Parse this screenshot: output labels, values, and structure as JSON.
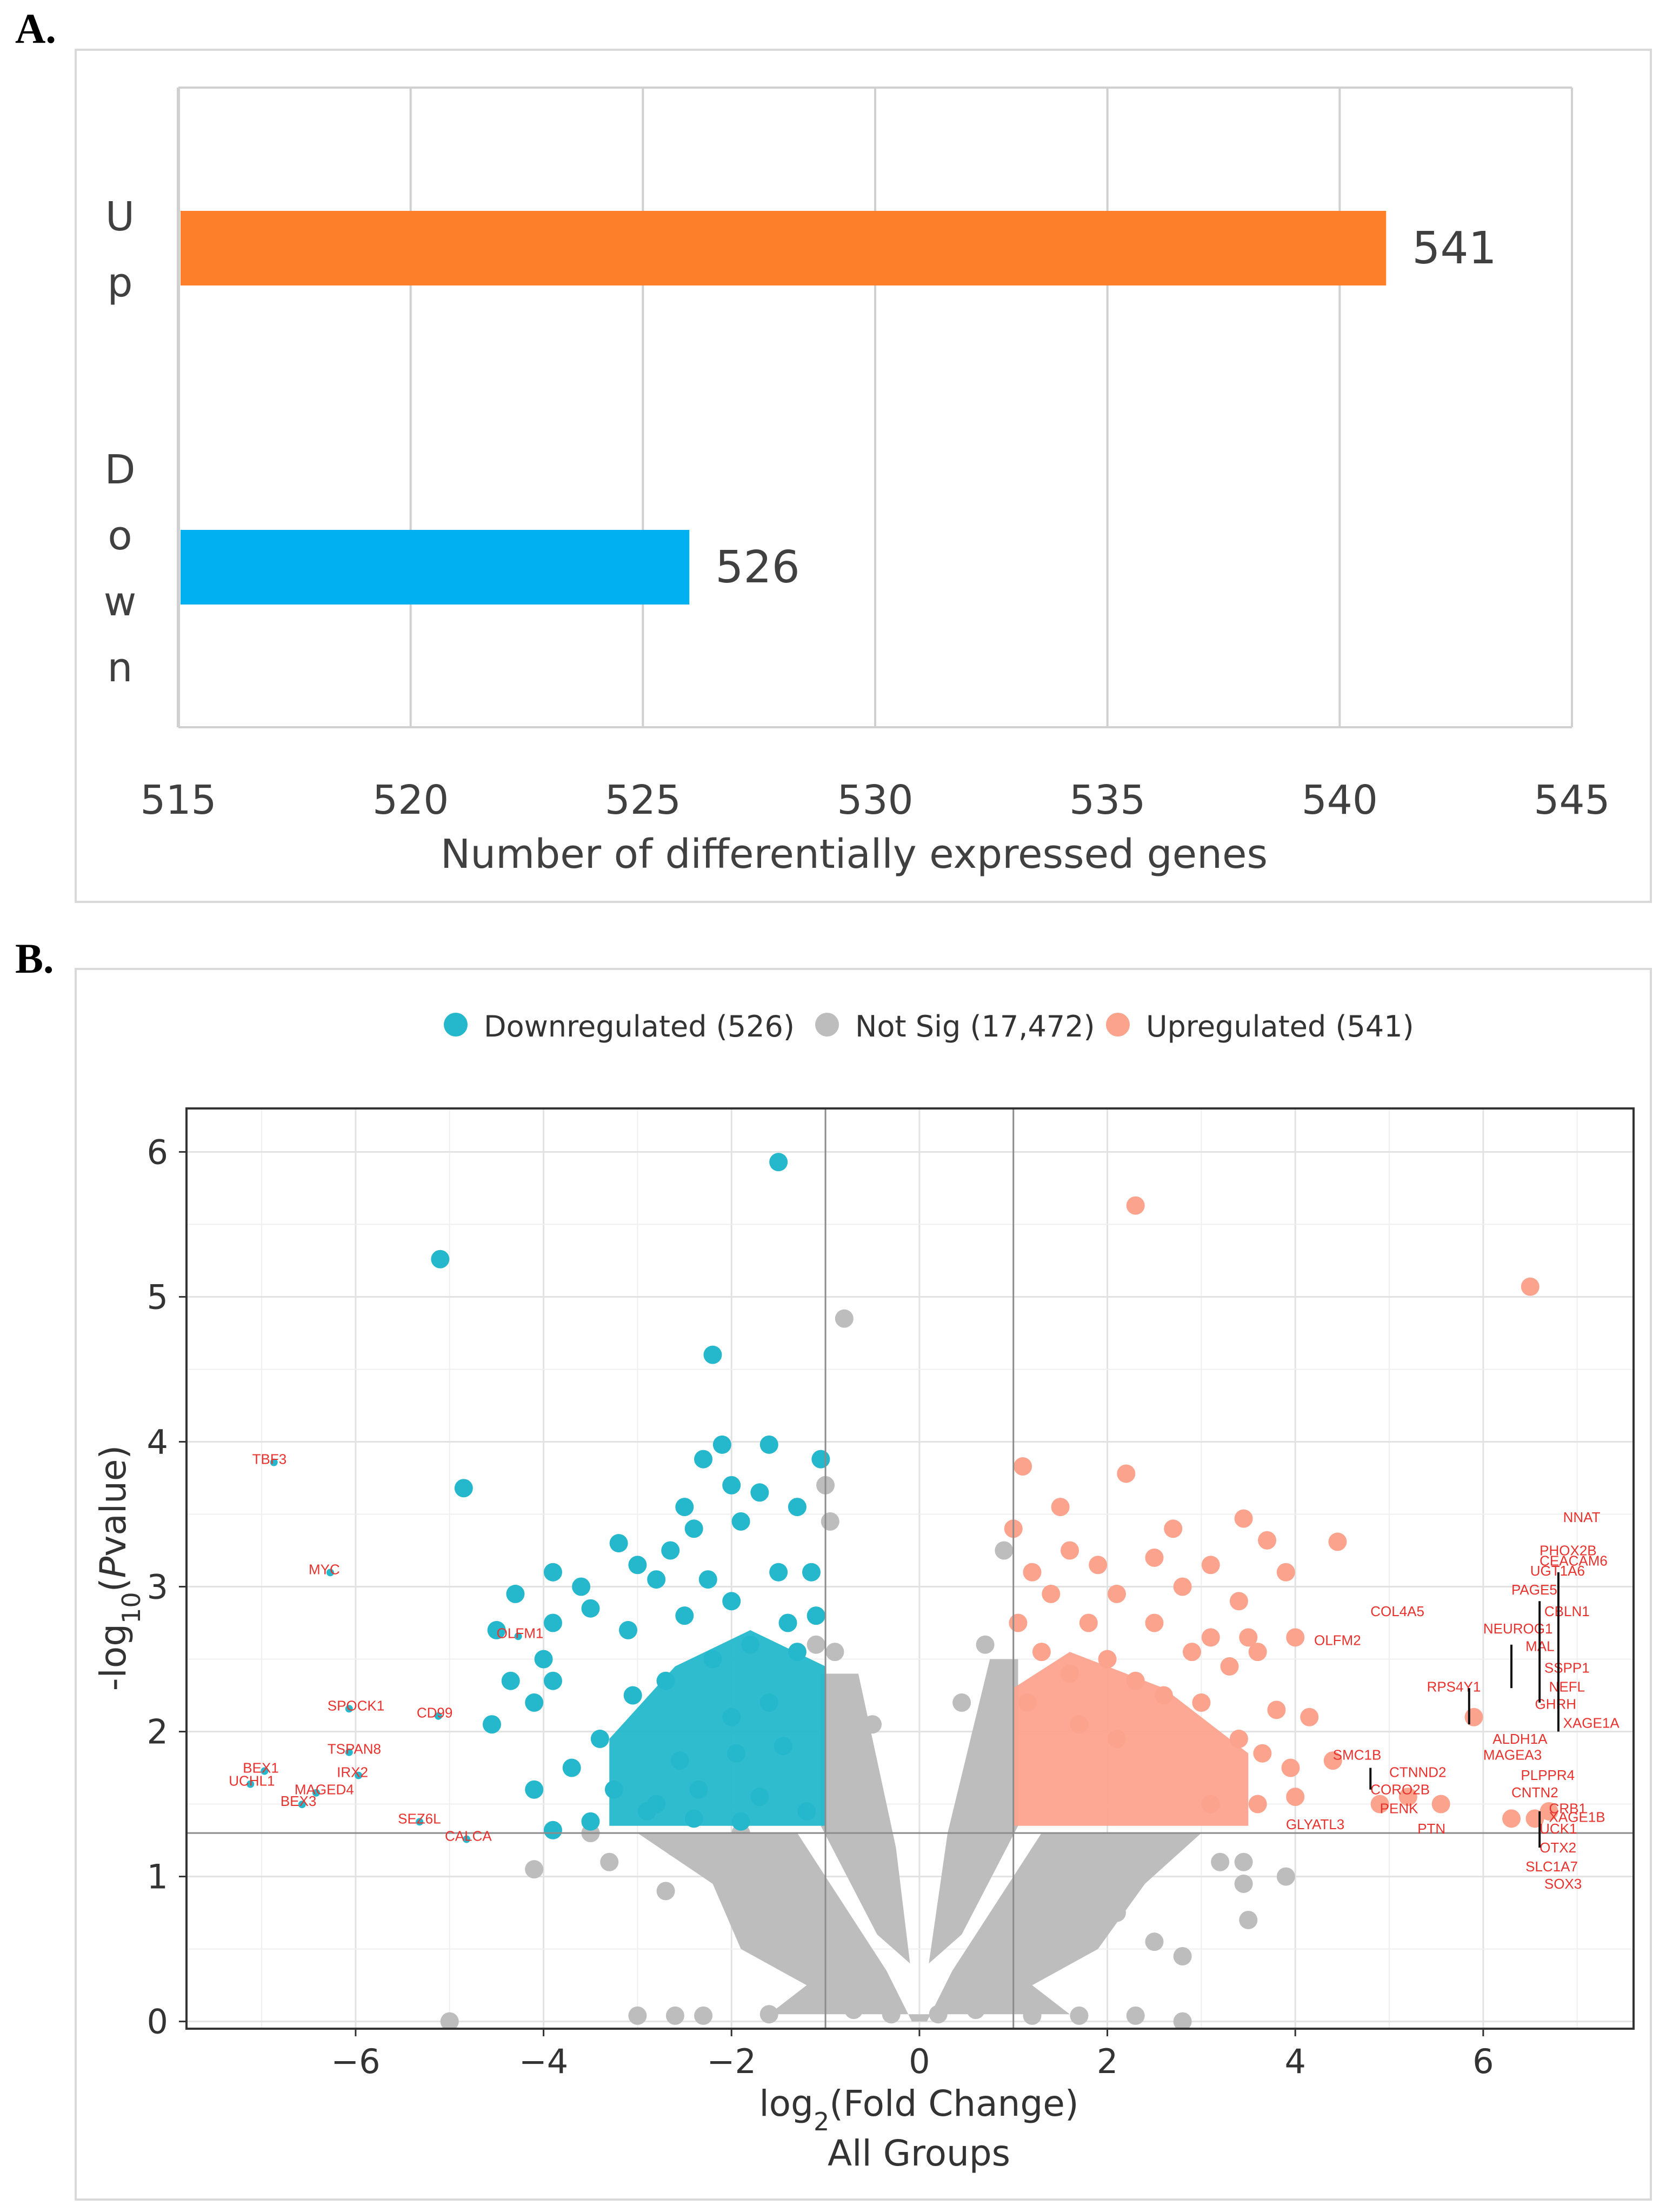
{
  "panels": {
    "a": "A.",
    "b": "B."
  },
  "chart_data": [
    {
      "type": "bar",
      "orientation": "horizontal",
      "categories": [
        "Up",
        "Down"
      ],
      "category_letters": [
        [
          "U",
          "p"
        ],
        [
          "D",
          "o",
          "w",
          "n"
        ]
      ],
      "values": [
        541,
        526
      ],
      "value_labels": [
        "541",
        "526"
      ],
      "colors": [
        "#fe7f2a",
        "#00b0f0"
      ],
      "xlim": [
        515,
        545
      ],
      "xticks": [
        515,
        520,
        525,
        530,
        535,
        540,
        545
      ],
      "xlabel": "Number of differentially expressed genes",
      "grid": true
    },
    {
      "type": "scatter",
      "subtype": "volcano",
      "legend": [
        {
          "label": "Downregulated (526)",
          "color": "#25b8cc"
        },
        {
          "label": "Not Sig (17,472)",
          "color": "#bdbdbd"
        },
        {
          "label": "Upregulated (541)",
          "color": "#fca38e"
        }
      ],
      "xlabel": "log2(Fold Change)",
      "xlabel_main": "log",
      "xlabel_sub": "2",
      "xlabel_rest": "(Fold Change)",
      "subtitle": "All Groups",
      "ylabel_pre": "-log",
      "ylabel_sub": "10",
      "ylabel_open": "(",
      "ylabel_italic": "P",
      "ylabel_rest": "value)",
      "xlim": [
        -7.8,
        7.6
      ],
      "ylim": [
        -0.05,
        6.3
      ],
      "xticks": [
        -6,
        -4,
        -2,
        0,
        2,
        4,
        6
      ],
      "xtick_labels": [
        "−6",
        "−4",
        "−2",
        "0",
        "2",
        "4",
        "6"
      ],
      "yticks": [
        0,
        1,
        2,
        3,
        4,
        5,
        6
      ],
      "ytick_labels": [
        "0",
        "1",
        "2",
        "3",
        "4",
        "5",
        "6"
      ],
      "thresholds": {
        "fold_change": [
          -1,
          1
        ],
        "pvalue": 1.3
      },
      "down_points": [
        [
          -1.5,
          5.93
        ],
        [
          -5.1,
          5.26
        ],
        [
          -2.2,
          4.6
        ],
        [
          -2.1,
          3.98
        ],
        [
          -1.6,
          3.98
        ],
        [
          -1.05,
          3.88
        ],
        [
          -2.3,
          3.88
        ],
        [
          -4.85,
          3.68
        ],
        [
          -2.5,
          3.55
        ],
        [
          -1.7,
          3.65
        ],
        [
          -1.3,
          3.55
        ],
        [
          -2.0,
          3.7
        ],
        [
          -2.4,
          3.4
        ],
        [
          -3.2,
          3.3
        ],
        [
          -2.65,
          3.25
        ],
        [
          -1.9,
          3.45
        ],
        [
          -3.9,
          3.1
        ],
        [
          -3.0,
          3.15
        ],
        [
          -2.8,
          3.05
        ],
        [
          -2.25,
          3.05
        ],
        [
          -1.5,
          3.1
        ],
        [
          -1.15,
          3.1
        ],
        [
          -3.6,
          3.0
        ],
        [
          -4.3,
          2.95
        ],
        [
          -3.5,
          2.85
        ],
        [
          -2.0,
          2.9
        ],
        [
          -1.1,
          2.8
        ],
        [
          -1.4,
          2.75
        ],
        [
          -3.9,
          2.75
        ],
        [
          -4.5,
          2.7
        ],
        [
          -3.1,
          2.7
        ],
        [
          -2.5,
          2.8
        ],
        [
          -4.0,
          2.5
        ],
        [
          -4.35,
          2.35
        ],
        [
          -3.9,
          2.35
        ],
        [
          -4.1,
          2.2
        ],
        [
          -4.55,
          2.05
        ],
        [
          -3.7,
          1.75
        ],
        [
          -4.1,
          1.6
        ],
        [
          -2.35,
          1.6
        ],
        [
          -3.9,
          1.32
        ],
        [
          -2.8,
          1.5
        ],
        [
          -1.95,
          1.85
        ],
        [
          -3.4,
          1.95
        ],
        [
          -3.05,
          2.25
        ],
        [
          -2.7,
          2.35
        ],
        [
          -2.2,
          2.5
        ],
        [
          -1.8,
          2.6
        ],
        [
          -1.3,
          2.55
        ],
        [
          -1.6,
          2.2
        ],
        [
          -2.0,
          2.1
        ],
        [
          -1.45,
          1.9
        ],
        [
          -2.55,
          1.8
        ],
        [
          -3.25,
          1.6
        ],
        [
          -1.7,
          1.55
        ],
        [
          -2.9,
          1.45
        ],
        [
          -1.2,
          1.45
        ],
        [
          -2.4,
          1.4
        ],
        [
          -1.9,
          1.38
        ],
        [
          -3.5,
          1.38
        ]
      ],
      "down_fill": {
        "x0": -3.3,
        "x1": -1.0,
        "y0": 1.35,
        "y1": 2.45
      },
      "up_points": [
        [
          2.3,
          5.63
        ],
        [
          6.5,
          5.07
        ],
        [
          1.1,
          3.83
        ],
        [
          2.2,
          3.78
        ],
        [
          1.5,
          3.55
        ],
        [
          3.45,
          3.47
        ],
        [
          1.0,
          3.4
        ],
        [
          2.7,
          3.4
        ],
        [
          3.7,
          3.32
        ],
        [
          4.45,
          3.31
        ],
        [
          1.6,
          3.25
        ],
        [
          1.9,
          3.15
        ],
        [
          2.5,
          3.2
        ],
        [
          3.1,
          3.15
        ],
        [
          3.9,
          3.1
        ],
        [
          1.2,
          3.1
        ],
        [
          2.8,
          3.0
        ],
        [
          1.4,
          2.95
        ],
        [
          2.1,
          2.95
        ],
        [
          3.4,
          2.9
        ],
        [
          1.05,
          2.75
        ],
        [
          1.8,
          2.75
        ],
        [
          2.5,
          2.75
        ],
        [
          3.1,
          2.65
        ],
        [
          3.5,
          2.65
        ],
        [
          4.0,
          2.65
        ],
        [
          1.3,
          2.55
        ],
        [
          2.0,
          2.5
        ],
        [
          2.9,
          2.55
        ],
        [
          3.3,
          2.45
        ],
        [
          3.6,
          2.55
        ],
        [
          1.6,
          2.4
        ],
        [
          2.3,
          2.35
        ],
        [
          2.6,
          2.25
        ],
        [
          3.0,
          2.2
        ],
        [
          3.8,
          2.15
        ],
        [
          4.15,
          2.1
        ],
        [
          1.15,
          2.2
        ],
        [
          1.7,
          2.05
        ],
        [
          2.1,
          1.95
        ],
        [
          3.4,
          1.95
        ],
        [
          3.65,
          1.85
        ],
        [
          3.95,
          1.75
        ],
        [
          4.4,
          1.8
        ],
        [
          4.0,
          1.55
        ],
        [
          3.6,
          1.5
        ],
        [
          3.1,
          1.5
        ],
        [
          4.9,
          1.5
        ],
        [
          5.2,
          1.55
        ],
        [
          5.55,
          1.5
        ],
        [
          5.9,
          2.1
        ],
        [
          6.3,
          1.4
        ],
        [
          6.55,
          1.4
        ],
        [
          6.7,
          1.45
        ]
      ],
      "up_fill": {
        "x0": 1.0,
        "x1": 3.5,
        "y0": 1.35,
        "y1": 2.3
      },
      "ns_points": [
        [
          -0.8,
          4.85
        ],
        [
          -1.1,
          2.6
        ],
        [
          -0.9,
          2.55
        ],
        [
          -1.0,
          3.7
        ],
        [
          -0.95,
          3.45
        ],
        [
          0.9,
          3.25
        ],
        [
          0.7,
          2.6
        ],
        [
          0.45,
          2.2
        ],
        [
          -0.5,
          2.05
        ],
        [
          0.8,
          1.95
        ],
        [
          -1.2,
          1.05
        ],
        [
          -1.9,
          1.3
        ],
        [
          -2.6,
          1.2
        ],
        [
          -3.5,
          1.3
        ],
        [
          -3.3,
          1.1
        ],
        [
          -4.1,
          1.05
        ],
        [
          -2.7,
          0.9
        ],
        [
          -1.0,
          0.3
        ],
        [
          0.95,
          0.3
        ],
        [
          2.8,
          0.45
        ],
        [
          3.5,
          0.7
        ],
        [
          3.45,
          0.95
        ],
        [
          3.9,
          1.0
        ],
        [
          3.45,
          1.1
        ],
        [
          3.2,
          1.1
        ],
        [
          2.5,
          0.55
        ],
        [
          1.5,
          0.9
        ],
        [
          1.8,
          1.05
        ],
        [
          2.3,
          1.0
        ],
        [
          2.1,
          0.75
        ],
        [
          -1.5,
          1.2
        ],
        [
          -2.2,
          1.05
        ],
        [
          -0.3,
          0.05
        ],
        [
          0.2,
          0.05
        ],
        [
          0.6,
          0.08
        ],
        [
          -0.7,
          0.08
        ],
        [
          -1.6,
          0.05
        ],
        [
          -2.3,
          0.04
        ],
        [
          -2.6,
          0.04
        ],
        [
          1.2,
          0.04
        ],
        [
          1.7,
          0.04
        ],
        [
          2.3,
          0.04
        ],
        [
          2.8,
          0.0
        ],
        [
          -5.0,
          0.0
        ],
        [
          -3.0,
          0.04
        ]
      ],
      "ns_funnel": {
        "left_outer": -3.0,
        "right_outer": 3.0,
        "y_top": 1.3
      },
      "down_gene_labels": [
        {
          "gene": "TBF3",
          "x": -7.1,
          "y": 3.88
        },
        {
          "gene": "MYC",
          "x": -6.5,
          "y": 3.12
        },
        {
          "gene": "OLFM1",
          "x": -4.5,
          "y": 2.68
        },
        {
          "gene": "SPOCK1",
          "x": -6.3,
          "y": 2.18
        },
        {
          "gene": "CD99",
          "x": -5.35,
          "y": 2.13
        },
        {
          "gene": "TSPAN8",
          "x": -6.3,
          "y": 1.88
        },
        {
          "gene": "BEX1",
          "x": -7.2,
          "y": 1.75
        },
        {
          "gene": "IRX2",
          "x": -6.2,
          "y": 1.72
        },
        {
          "gene": "UCHL1",
          "x": -7.35,
          "y": 1.66
        },
        {
          "gene": "MAGED4",
          "x": -6.65,
          "y": 1.6
        },
        {
          "gene": "BEX3",
          "x": -6.8,
          "y": 1.52
        },
        {
          "gene": "SEZ6L",
          "x": -5.55,
          "y": 1.4
        },
        {
          "gene": "CALCA",
          "x": -5.05,
          "y": 1.28
        }
      ],
      "up_gene_labels": [
        {
          "gene": "NNAT",
          "x": 6.85,
          "y": 3.48
        },
        {
          "gene": "PHOX2B",
          "x": 6.6,
          "y": 3.25
        },
        {
          "gene": "CEACAM6",
          "x": 6.6,
          "y": 3.18
        },
        {
          "gene": "UGT1A6",
          "x": 6.5,
          "y": 3.11
        },
        {
          "gene": "PAGE5",
          "x": 6.3,
          "y": 2.98
        },
        {
          "gene": "COL4A5",
          "x": 4.8,
          "y": 2.83
        },
        {
          "gene": "CBLN1",
          "x": 6.65,
          "y": 2.83
        },
        {
          "gene": "NEUROG1",
          "x": 6.0,
          "y": 2.71
        },
        {
          "gene": "OLFM2",
          "x": 4.2,
          "y": 2.63
        },
        {
          "gene": "MAL",
          "x": 6.45,
          "y": 2.59
        },
        {
          "gene": "SSPP1",
          "x": 6.65,
          "y": 2.44
        },
        {
          "gene": "RPS4Y1",
          "x": 5.4,
          "y": 2.31
        },
        {
          "gene": "NEFL",
          "x": 6.7,
          "y": 2.31
        },
        {
          "gene": "GHRH",
          "x": 6.55,
          "y": 2.19
        },
        {
          "gene": "XAGE1A",
          "x": 6.85,
          "y": 2.06
        },
        {
          "gene": "ALDH1A",
          "x": 6.1,
          "y": 1.95
        },
        {
          "gene": "SMC1B",
          "x": 4.4,
          "y": 1.84
        },
        {
          "gene": "MAGEA3",
          "x": 6.0,
          "y": 1.84
        },
        {
          "gene": "CTNND2",
          "x": 5.0,
          "y": 1.72
        },
        {
          "gene": "PLPPR4",
          "x": 6.4,
          "y": 1.7
        },
        {
          "gene": "CORO2B",
          "x": 4.8,
          "y": 1.6
        },
        {
          "gene": "CNTN2",
          "x": 6.3,
          "y": 1.58
        },
        {
          "gene": "PENK",
          "x": 4.9,
          "y": 1.47
        },
        {
          "gene": "CRB1",
          "x": 6.7,
          "y": 1.47
        },
        {
          "gene": "XAGE1B",
          "x": 6.7,
          "y": 1.41
        },
        {
          "gene": "GLYATL3",
          "x": 3.9,
          "y": 1.36
        },
        {
          "gene": "PTN",
          "x": 5.3,
          "y": 1.33
        },
        {
          "gene": "UCK1",
          "x": 6.6,
          "y": 1.33
        },
        {
          "gene": "OTX2",
          "x": 6.6,
          "y": 1.2
        },
        {
          "gene": "SLC1A7",
          "x": 6.45,
          "y": 1.07
        },
        {
          "gene": "SOX3",
          "x": 6.65,
          "y": 0.95
        }
      ]
    }
  ]
}
